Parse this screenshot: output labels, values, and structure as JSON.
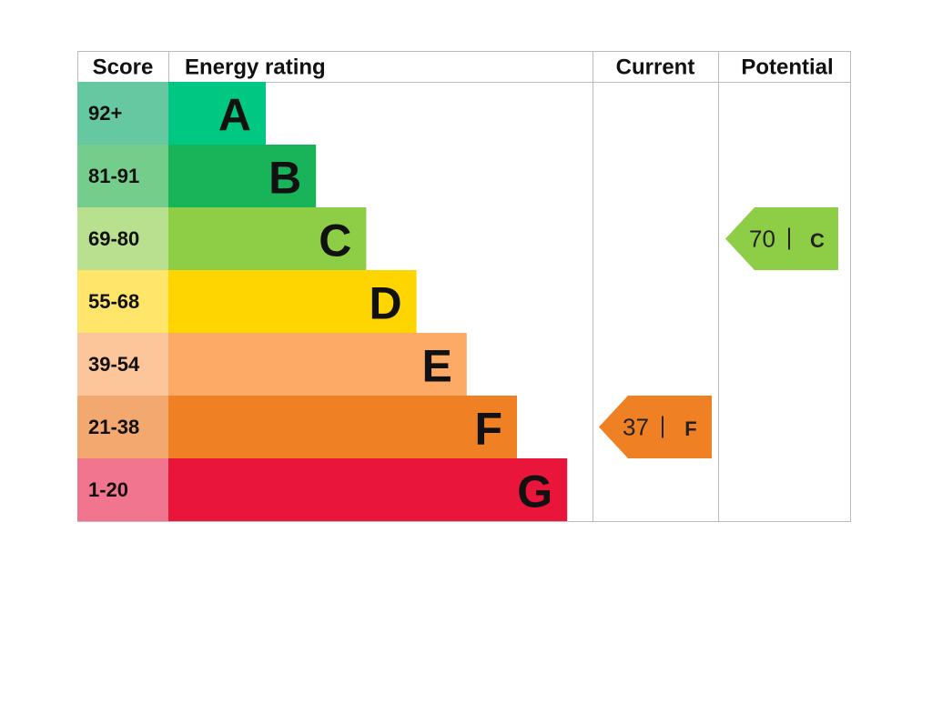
{
  "header": {
    "score": "Score",
    "energy_rating": "Energy rating",
    "current": "Current",
    "potential": "Potential"
  },
  "bands": [
    {
      "score": "92+",
      "letter": "A",
      "color": "#00c781",
      "score_color": "#66c8a0"
    },
    {
      "score": "81-91",
      "letter": "B",
      "color": "#19b459",
      "score_color": "#75cd8b"
    },
    {
      "score": "69-80",
      "letter": "C",
      "color": "#8dce46",
      "score_color": "#b8e08e"
    },
    {
      "score": "55-68",
      "letter": "D",
      "color": "#ffd500",
      "score_color": "#ffe66a"
    },
    {
      "score": "39-54",
      "letter": "E",
      "color": "#fcaa65",
      "score_color": "#fdc69a"
    },
    {
      "score": "21-38",
      "letter": "F",
      "color": "#ef8023",
      "score_color": "#f3a86f"
    },
    {
      "score": "1-20",
      "letter": "G",
      "color": "#e9153b",
      "score_color": "#f27590"
    }
  ],
  "current": {
    "score": "37",
    "rating": "F"
  },
  "potential": {
    "score": "70",
    "rating": "C"
  }
}
